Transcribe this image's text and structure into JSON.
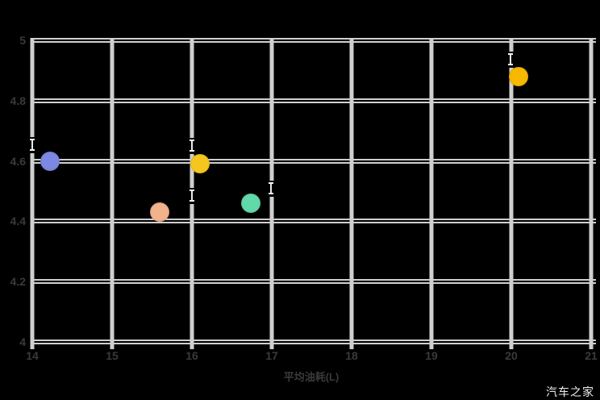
{
  "watermark": "汽车之家",
  "chart_data": {
    "type": "scatter",
    "title": "",
    "xlabel": "平均油耗(L)",
    "ylabel": "",
    "xlim": [
      14,
      21
    ],
    "ylim": [
      4,
      5
    ],
    "x_ticks": [
      "14",
      "15",
      "16",
      "17",
      "18",
      "19",
      "20",
      "21"
    ],
    "y_ticks": [
      "5",
      "4.8",
      "4.6",
      "4.4",
      "4.2",
      "4"
    ],
    "grid": true,
    "gridline_color": "#cfcfcf",
    "tick_label_color": "#3a3a3a",
    "background_color": "#000000",
    "legend": "none",
    "points": [
      {
        "name": "point-periwinkle",
        "x": 14.22,
        "y": 4.6,
        "color": "#7d88e3",
        "micro_label_offset": [
          -22,
          -20
        ]
      },
      {
        "name": "point-salmon",
        "x": 15.6,
        "y": 4.43,
        "color": "#f1b28c",
        "micro_label_offset": [
          40,
          -20
        ]
      },
      {
        "name": "point-yellow",
        "x": 16.1,
        "y": 4.59,
        "color": "#f5c71e",
        "micro_label_offset": [
          -10,
          -22
        ]
      },
      {
        "name": "point-teal",
        "x": 16.74,
        "y": 4.46,
        "color": "#62d9ab",
        "micro_label_offset": [
          25,
          -18
        ]
      },
      {
        "name": "point-amber",
        "x": 20.09,
        "y": 4.88,
        "color": "#f9b800",
        "micro_label_offset": [
          -10,
          -21
        ]
      }
    ]
  }
}
